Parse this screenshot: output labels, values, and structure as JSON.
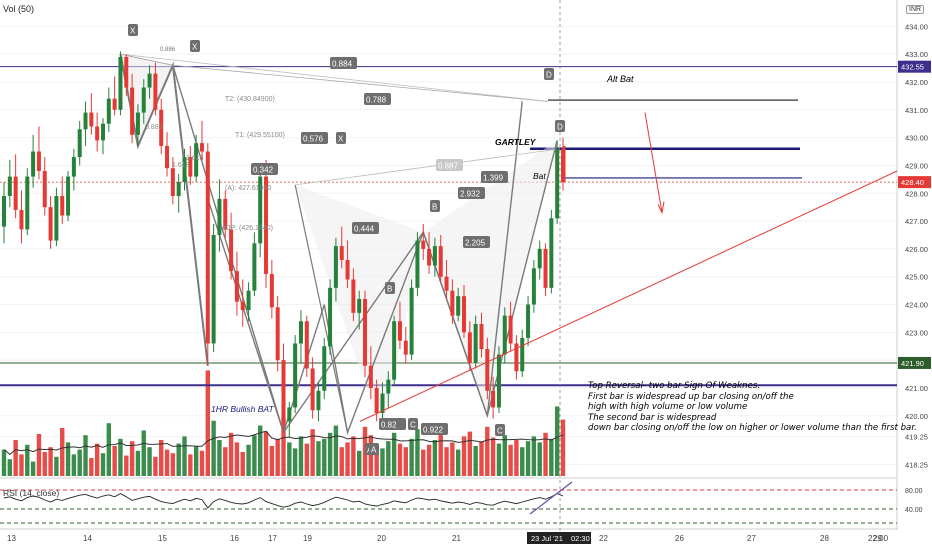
{
  "header": {
    "volume_label": "Vol (50)",
    "currency": "INR"
  },
  "price_axis": {
    "ticks": [
      "434.00",
      "433.00",
      "432.00",
      "431.00",
      "430.00",
      "429.00",
      "428.00",
      "427.00",
      "426.00",
      "425.00",
      "424.00",
      "423.00",
      "422.00",
      "421.00",
      "420.00",
      "419.25",
      "418.25"
    ],
    "tags": [
      {
        "text": "432.55",
        "value": 432.55,
        "color": "#3d2f8c"
      },
      {
        "text": "428.40",
        "value": 428.4,
        "color": "#e53935"
      },
      {
        "text": "421.90",
        "value": 421.9,
        "color": "#2d5d2a"
      }
    ]
  },
  "rsi_axis": {
    "ticks": [
      "80.00",
      "40.00"
    ]
  },
  "time_axis": {
    "labels": [
      "13",
      "14",
      "15",
      "16",
      "17",
      "19",
      "20",
      "21",
      "22",
      "26",
      "27",
      "28",
      "29",
      "22:00"
    ],
    "highlight": [
      "23 Jul '21",
      "02:30"
    ]
  },
  "rsi_label": "RSI (14, close)",
  "annotations": {
    "alt_bat": "Alt  Bat",
    "gartley": "GARTLEY",
    "bat": "Bat",
    "bullish_bat": "1HR Bullish BAT",
    "note": "Top Reversal- two bar Sign Of Weaknes.\nFirst bar is widespread up bar closing on/off the\nhigh with high volume  or low volume\nThe second bar is widespread\ndown bar closing on/off the low on higher or lower volume than the first bar."
  },
  "pattern_points": [
    "X",
    "X",
    "X",
    "A",
    "B",
    "C",
    "A",
    "B",
    "C",
    "D",
    "D"
  ],
  "ratio_labels": [
    "0.886",
    "0.884",
    "0.788",
    "0.576",
    "0.342",
    "0.444",
    "0.82",
    "0.922",
    "0.887",
    "1.399",
    "2.932",
    "2.205"
  ],
  "fib_labels": [
    "T2: (430.84900)",
    "T1: (429.55100)",
    "(A): 427.61060",
    "HOP: (426.1840)",
    "0.886",
    "1.618",
    "1.618"
  ],
  "colors": {
    "up": "#26813a",
    "down": "#e53935",
    "pattern_line": "#7a7a7a",
    "purple": "#3d2f8c",
    "red_line": "#e53935",
    "green_line": "#2d5d2a"
  },
  "chart_data": {
    "type": "candlestick",
    "title": "",
    "ylabel": "INR",
    "ylim": [
      417.8,
      434.3
    ],
    "candles": [
      [
        426.8,
        428.4,
        426.2,
        427.9
      ],
      [
        427.9,
        429.2,
        427.5,
        428.6
      ],
      [
        428.6,
        429.4,
        427.1,
        427.4
      ],
      [
        427.4,
        428.1,
        426.2,
        426.7
      ],
      [
        426.7,
        428.9,
        426.5,
        428.6
      ],
      [
        428.6,
        430.1,
        428.2,
        429.5
      ],
      [
        429.5,
        430.4,
        428.5,
        428.8
      ],
      [
        428.8,
        429.3,
        427.2,
        427.5
      ],
      [
        427.5,
        427.9,
        426.0,
        426.3
      ],
      [
        426.3,
        428.2,
        426.1,
        427.9
      ],
      [
        427.9,
        428.6,
        426.9,
        427.2
      ],
      [
        427.2,
        428.8,
        427.0,
        428.6
      ],
      [
        428.6,
        429.6,
        428.1,
        429.3
      ],
      [
        429.3,
        430.6,
        429.0,
        430.3
      ],
      [
        430.3,
        431.3,
        429.7,
        430.9
      ],
      [
        430.9,
        431.6,
        430.1,
        430.4
      ],
      [
        430.4,
        430.9,
        429.5,
        429.9
      ],
      [
        429.9,
        430.7,
        429.4,
        430.5
      ],
      [
        430.5,
        431.8,
        430.2,
        431.4
      ],
      [
        431.4,
        432.2,
        430.8,
        431.0
      ],
      [
        431.0,
        433.1,
        430.8,
        432.9
      ],
      [
        432.9,
        433.0,
        431.5,
        431.8
      ],
      [
        431.8,
        432.3,
        429.8,
        430.1
      ],
      [
        430.1,
        431.2,
        429.7,
        430.9
      ],
      [
        430.9,
        432.1,
        430.5,
        431.8
      ],
      [
        431.8,
        432.6,
        431.4,
        432.3
      ],
      [
        432.3,
        432.7,
        430.8,
        431.0
      ],
      [
        431.0,
        431.4,
        429.4,
        429.7
      ],
      [
        429.7,
        430.2,
        428.6,
        428.9
      ],
      [
        428.9,
        429.3,
        427.6,
        427.9
      ],
      [
        427.9,
        428.7,
        427.3,
        428.4
      ],
      [
        428.4,
        429.6,
        428.1,
        429.3
      ],
      [
        429.3,
        429.7,
        428.3,
        428.6
      ],
      [
        428.6,
        430.1,
        428.4,
        429.8
      ],
      [
        429.8,
        430.6,
        429.2,
        429.5
      ],
      [
        429.5,
        429.8,
        421.8,
        422.6
      ],
      [
        422.6,
        426.9,
        422.3,
        426.5
      ],
      [
        426.5,
        428.5,
        425.9,
        427.8
      ],
      [
        427.8,
        428.1,
        426.4,
        426.7
      ],
      [
        426.7,
        427.3,
        424.9,
        425.2
      ],
      [
        425.2,
        425.9,
        423.6,
        424.1
      ],
      [
        424.1,
        424.9,
        423.2,
        423.8
      ],
      [
        423.8,
        424.8,
        423.4,
        424.5
      ],
      [
        424.5,
        426.6,
        424.3,
        426.2
      ],
      [
        426.2,
        428.9,
        425.7,
        428.6
      ],
      [
        428.6,
        429.2,
        424.6,
        425.1
      ],
      [
        425.1,
        425.6,
        423.5,
        423.9
      ],
      [
        423.9,
        424.3,
        421.6,
        422.0
      ],
      [
        422.0,
        422.6,
        419.4,
        419.8
      ],
      [
        419.8,
        420.5,
        419.2,
        420.3
      ],
      [
        420.3,
        422.9,
        420.1,
        422.6
      ],
      [
        422.6,
        423.8,
        421.9,
        423.4
      ],
      [
        423.4,
        423.6,
        421.4,
        421.7
      ],
      [
        421.7,
        422.1,
        419.9,
        420.2
      ],
      [
        420.2,
        421.2,
        419.8,
        420.9
      ],
      [
        420.9,
        422.8,
        420.6,
        422.5
      ],
      [
        422.5,
        424.9,
        422.2,
        424.6
      ],
      [
        424.6,
        426.4,
        424.1,
        426.1
      ],
      [
        426.1,
        426.8,
        425.3,
        425.6
      ],
      [
        425.6,
        426.3,
        424.6,
        424.9
      ],
      [
        424.9,
        425.3,
        423.4,
        423.7
      ],
      [
        423.7,
        424.5,
        423.1,
        424.2
      ],
      [
        424.2,
        424.5,
        421.4,
        421.8
      ],
      [
        421.8,
        422.5,
        420.6,
        421.0
      ],
      [
        421.0,
        421.3,
        419.8,
        420.1
      ],
      [
        420.1,
        421.2,
        419.9,
        420.8
      ],
      [
        420.8,
        421.6,
        420.3,
        421.3
      ],
      [
        421.3,
        423.6,
        421.1,
        423.4
      ],
      [
        423.4,
        424.1,
        422.4,
        422.7
      ],
      [
        422.7,
        423.2,
        421.9,
        422.2
      ],
      [
        422.2,
        424.9,
        422.0,
        424.6
      ],
      [
        424.6,
        426.6,
        424.3,
        426.3
      ],
      [
        426.3,
        426.9,
        425.6,
        426.0
      ],
      [
        426.0,
        426.6,
        425.1,
        425.4
      ],
      [
        425.4,
        426.4,
        425.0,
        426.1
      ],
      [
        426.1,
        426.5,
        424.8,
        425.0
      ],
      [
        425.0,
        425.6,
        424.2,
        424.5
      ],
      [
        424.5,
        424.9,
        423.3,
        423.6
      ],
      [
        423.6,
        424.6,
        423.4,
        424.3
      ],
      [
        424.3,
        424.7,
        422.8,
        423.0
      ],
      [
        423.0,
        423.4,
        421.6,
        421.9
      ],
      [
        421.9,
        423.6,
        421.7,
        423.3
      ],
      [
        423.3,
        423.7,
        422.1,
        422.4
      ],
      [
        422.4,
        422.8,
        420.6,
        420.9
      ],
      [
        420.9,
        421.4,
        419.9,
        420.3
      ],
      [
        420.3,
        422.5,
        420.1,
        422.2
      ],
      [
        422.2,
        423.9,
        421.9,
        423.6
      ],
      [
        423.6,
        424.1,
        422.3,
        422.6
      ],
      [
        422.6,
        422.9,
        421.3,
        421.6
      ],
      [
        421.6,
        423.1,
        421.4,
        422.8
      ],
      [
        422.8,
        424.3,
        422.5,
        424.0
      ],
      [
        424.0,
        425.6,
        423.7,
        425.3
      ],
      [
        425.3,
        426.3,
        424.9,
        426.0
      ],
      [
        426.0,
        426.2,
        424.3,
        424.6
      ],
      [
        424.6,
        427.4,
        424.4,
        427.1
      ],
      [
        427.1,
        429.9,
        426.9,
        429.6
      ],
      [
        429.6,
        430.0,
        428.1,
        428.4
      ]
    ],
    "volume": [
      22,
      14,
      30,
      18,
      26,
      12,
      35,
      20,
      24,
      16,
      40,
      28,
      18,
      22,
      34,
      15,
      27,
      19,
      44,
      25,
      31,
      17,
      29,
      21,
      38,
      24,
      16,
      30,
      22,
      19,
      27,
      33,
      18,
      25,
      21,
      88,
      46,
      30,
      24,
      36,
      28,
      20,
      26,
      34,
      42,
      37,
      25,
      31,
      49,
      28,
      23,
      33,
      27,
      39,
      29,
      31,
      36,
      42,
      24,
      28,
      33,
      21,
      41,
      34,
      26,
      23,
      29,
      36,
      27,
      24,
      31,
      39,
      22,
      26,
      30,
      35,
      24,
      28,
      22,
      33,
      37,
      25,
      29,
      41,
      32,
      27,
      34,
      26,
      30,
      24,
      29,
      33,
      28,
      36,
      31,
      58,
      47
    ],
    "rsi": [
      55,
      58,
      52,
      48,
      56,
      60,
      57,
      50,
      45,
      52,
      49,
      54,
      58,
      62,
      64,
      59,
      55,
      60,
      63,
      58,
      66,
      58,
      49,
      53,
      57,
      59,
      52,
      46,
      43,
      41,
      47,
      52,
      48,
      54,
      51,
      30,
      46,
      53,
      49,
      44,
      41,
      40,
      43,
      50,
      56,
      46,
      41,
      36,
      32,
      35,
      42,
      45,
      40,
      36,
      39,
      44,
      51,
      57,
      54,
      50,
      45,
      47,
      40,
      37,
      35,
      39,
      42,
      48,
      45,
      43,
      50,
      55,
      53,
      50,
      52,
      48,
      45,
      42,
      45,
      43,
      39,
      44,
      42,
      38,
      37,
      43,
      47,
      44,
      41,
      45,
      49,
      53,
      56,
      52,
      58,
      66,
      60
    ],
    "levels": [
      {
        "name": "purple-top",
        "value": 432.55,
        "color": "#3d2f8c"
      },
      {
        "name": "red-dotted",
        "value": 428.4,
        "color": "#e53935"
      },
      {
        "name": "green",
        "value": 421.9,
        "color": "#2d5d2a"
      },
      {
        "name": "purple-low",
        "value": 421.1,
        "color": "#3d2f8c"
      },
      {
        "name": "alt-bat-line",
        "value": 431.35,
        "color": "#555555"
      },
      {
        "name": "gartley-line",
        "value": 429.6,
        "color": "#1a1a7a"
      },
      {
        "name": "bat-line",
        "value": 428.55,
        "color": "#1a1a7a"
      }
    ],
    "rsi_levels": [
      80,
      40
    ],
    "grid": true
  }
}
